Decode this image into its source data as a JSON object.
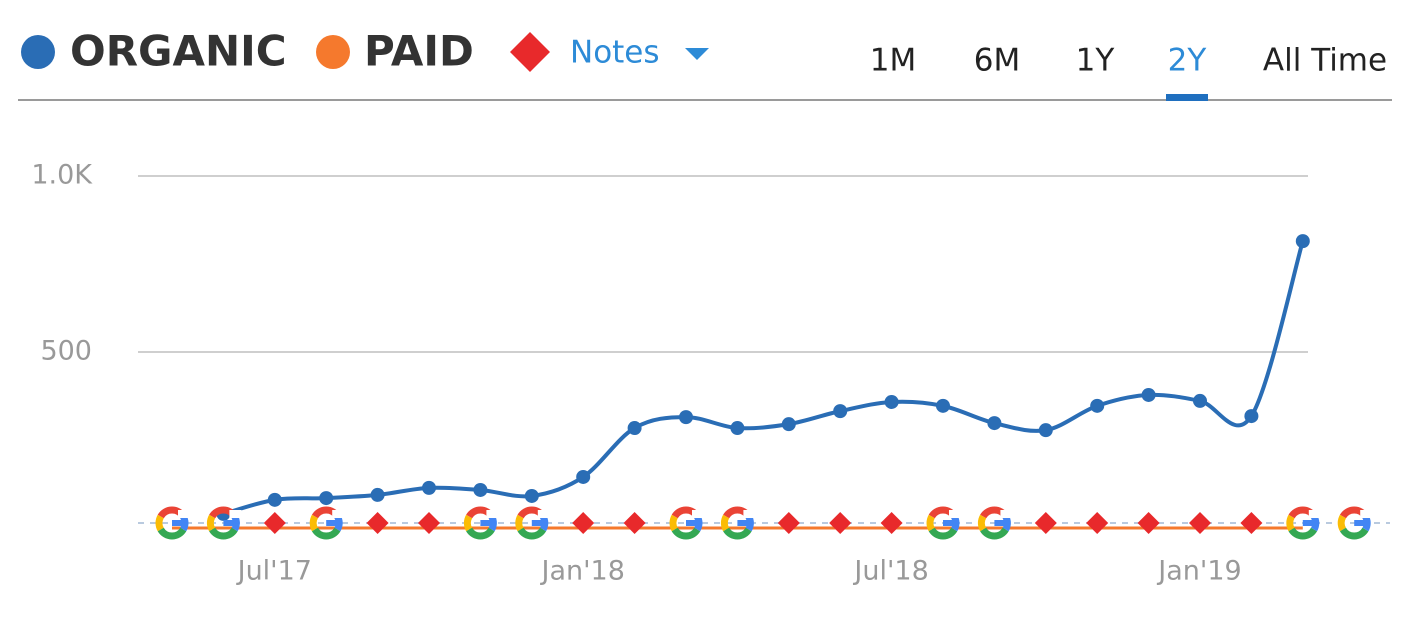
{
  "chart_data": {
    "type": "line",
    "series": [
      {
        "name": "ORGANIC",
        "color": "#2a6db5",
        "values": [
          null,
          40,
          80,
          85,
          94,
          114,
          108,
          91,
          145,
          284,
          315,
          284,
          295,
          332,
          358,
          347,
          298,
          278,
          347,
          378,
          361,
          318,
          815
        ]
      },
      {
        "name": "PAID",
        "color": "#f5792d",
        "values": [
          0,
          0,
          0,
          0,
          0,
          0,
          0,
          0,
          0,
          0,
          0,
          0,
          0,
          0,
          0,
          0,
          0,
          0,
          0,
          0,
          0,
          0,
          0
        ]
      }
    ],
    "notes_label": "Notes",
    "notes_color": "#e8292b",
    "categories": [
      null,
      null,
      "Jul'17",
      null,
      null,
      null,
      null,
      null,
      "Jan'18",
      null,
      null,
      null,
      null,
      null,
      "Jul'18",
      null,
      null,
      null,
      null,
      null,
      "Jan'19",
      null,
      null
    ],
    "ylim": [
      0,
      1000
    ],
    "yticks": [
      500,
      {
        "value": 1000,
        "label": "1.0K"
      }
    ],
    "grid": true,
    "range_tabs": [
      "1M",
      "6M",
      "1Y",
      "2Y",
      "All Time"
    ],
    "active_tab": 3
  }
}
